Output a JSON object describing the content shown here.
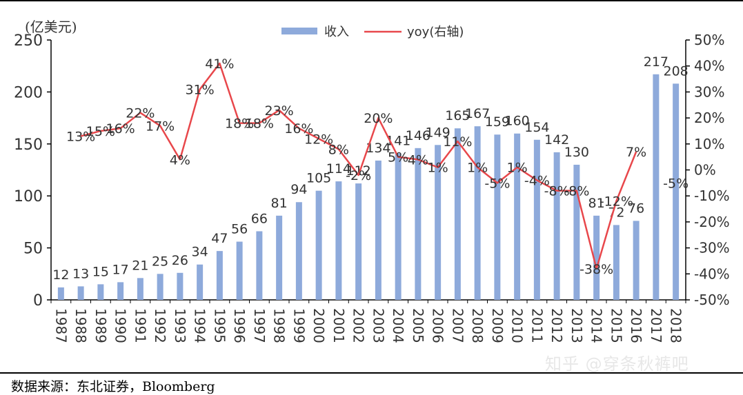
{
  "chart_data": {
    "type": "bar",
    "unit_label": "(亿美元)",
    "categories": [
      "1987",
      "1988",
      "1989",
      "1990",
      "1991",
      "1992",
      "1993",
      "1994",
      "1995",
      "1996",
      "1997",
      "1998",
      "1999",
      "2000",
      "2001",
      "2002",
      "2003",
      "2004",
      "2005",
      "2006",
      "2007",
      "2008",
      "2009",
      "2010",
      "2011",
      "2012",
      "2013",
      "2014",
      "2015",
      "2016",
      "2017",
      "2018"
    ],
    "series": [
      {
        "name": "收入",
        "axis": "left",
        "kind": "bar",
        "color": "#8eaadb",
        "values": [
          12,
          13,
          15,
          17,
          21,
          25,
          26,
          34,
          47,
          56,
          66,
          81,
          94,
          105,
          114,
          112,
          134,
          141,
          146,
          149,
          165,
          167,
          159,
          160,
          154,
          142,
          130,
          81,
          72,
          76,
          217,
          208
        ]
      },
      {
        "name": "yoy(右轴)",
        "axis": "right",
        "kind": "line",
        "color": "#e8474b",
        "values": [
          null,
          13,
          15,
          16,
          22,
          17,
          4,
          31,
          41,
          18,
          18,
          23,
          16,
          12,
          8,
          -2,
          20,
          5,
          4,
          1,
          11,
          1,
          -5,
          1,
          -4,
          -8,
          -8,
          -38,
          -12,
          7,
          null,
          -5
        ]
      }
    ],
    "yoy_labels": [
      "",
      "13%",
      "15%",
      "16%",
      "22%",
      "17%",
      "4%",
      "31%",
      "41%",
      "18%",
      "18%",
      "23%",
      "16%",
      "12%",
      "8%",
      "-2%",
      "20%",
      "5%",
      "4%",
      "1%",
      "11%",
      "1%",
      "-5%",
      "1%",
      "-4%",
      "-8%",
      "-8%",
      "-38%",
      "-12%",
      "7%",
      "",
      "-5%"
    ],
    "ylim_left": [
      0,
      250
    ],
    "yticks_left": [
      "0",
      "50",
      "100",
      "150",
      "200",
      "250"
    ],
    "ylim_right": [
      -50,
      50
    ],
    "yticks_right": [
      "-50%",
      "-40%",
      "-30%",
      "-20%",
      "-10%",
      "0%",
      "10%",
      "20%",
      "30%",
      "40%",
      "50%"
    ],
    "legend": [
      "收入",
      "yoy(右轴)"
    ],
    "legend_position": "top-center"
  },
  "footer": {
    "source": "数据来源：东北证券，Bloomberg",
    "watermark": "知乎 @穿条秋裤吧"
  }
}
